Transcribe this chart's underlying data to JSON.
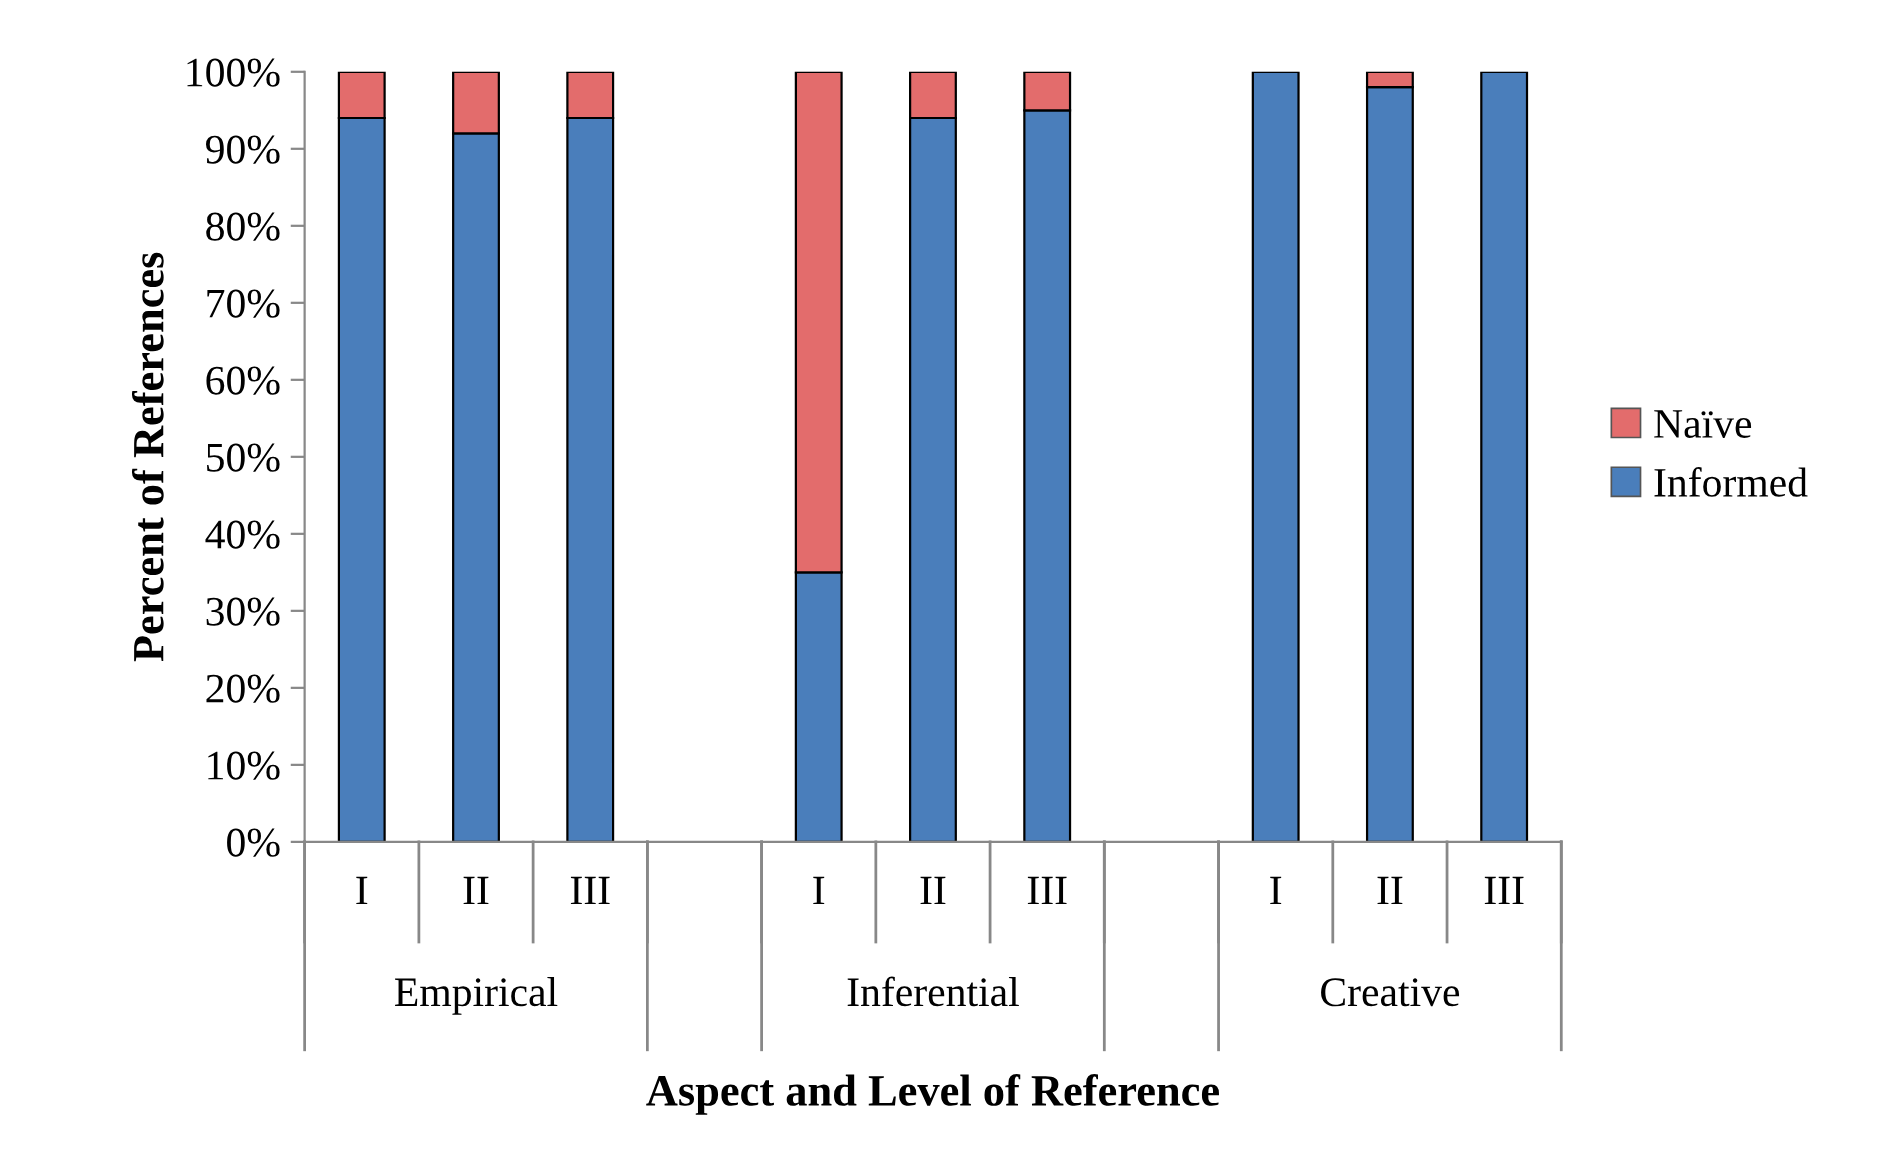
{
  "chart_data": {
    "type": "bar",
    "stacked": true,
    "categories": [
      "I",
      "II",
      "III",
      null,
      "I",
      "II",
      "III",
      null,
      "I",
      "II",
      "III"
    ],
    "series": [
      {
        "name": "Informed",
        "color": "#4a7ebb",
        "values": [
          94,
          92,
          94,
          null,
          35,
          94,
          95,
          null,
          100,
          98,
          100
        ]
      },
      {
        "name": "Naïve",
        "color": "#e36c6c",
        "values": [
          6,
          8,
          6,
          null,
          65,
          6,
          5,
          null,
          0,
          2,
          0
        ]
      }
    ],
    "ylim": [
      0,
      100
    ],
    "yticks": [
      {
        "value": 0,
        "label": "0%"
      },
      {
        "value": 10,
        "label": "10%"
      },
      {
        "value": 20,
        "label": "20%"
      },
      {
        "value": 30,
        "label": "30%"
      },
      {
        "value": 40,
        "label": "40%"
      },
      {
        "value": 50,
        "label": "50%"
      },
      {
        "value": 60,
        "label": "60%"
      },
      {
        "value": 70,
        "label": "70%"
      },
      {
        "value": 80,
        "label": "80%"
      },
      {
        "value": 90,
        "label": "90%"
      },
      {
        "value": 100,
        "label": "100%"
      }
    ],
    "ylabel": "Percent of References",
    "xlabel": "Aspect and Level of Reference",
    "annotations": [
      "Empirical",
      "Inferential",
      "Creative"
    ],
    "legend": "right",
    "grid": false
  }
}
